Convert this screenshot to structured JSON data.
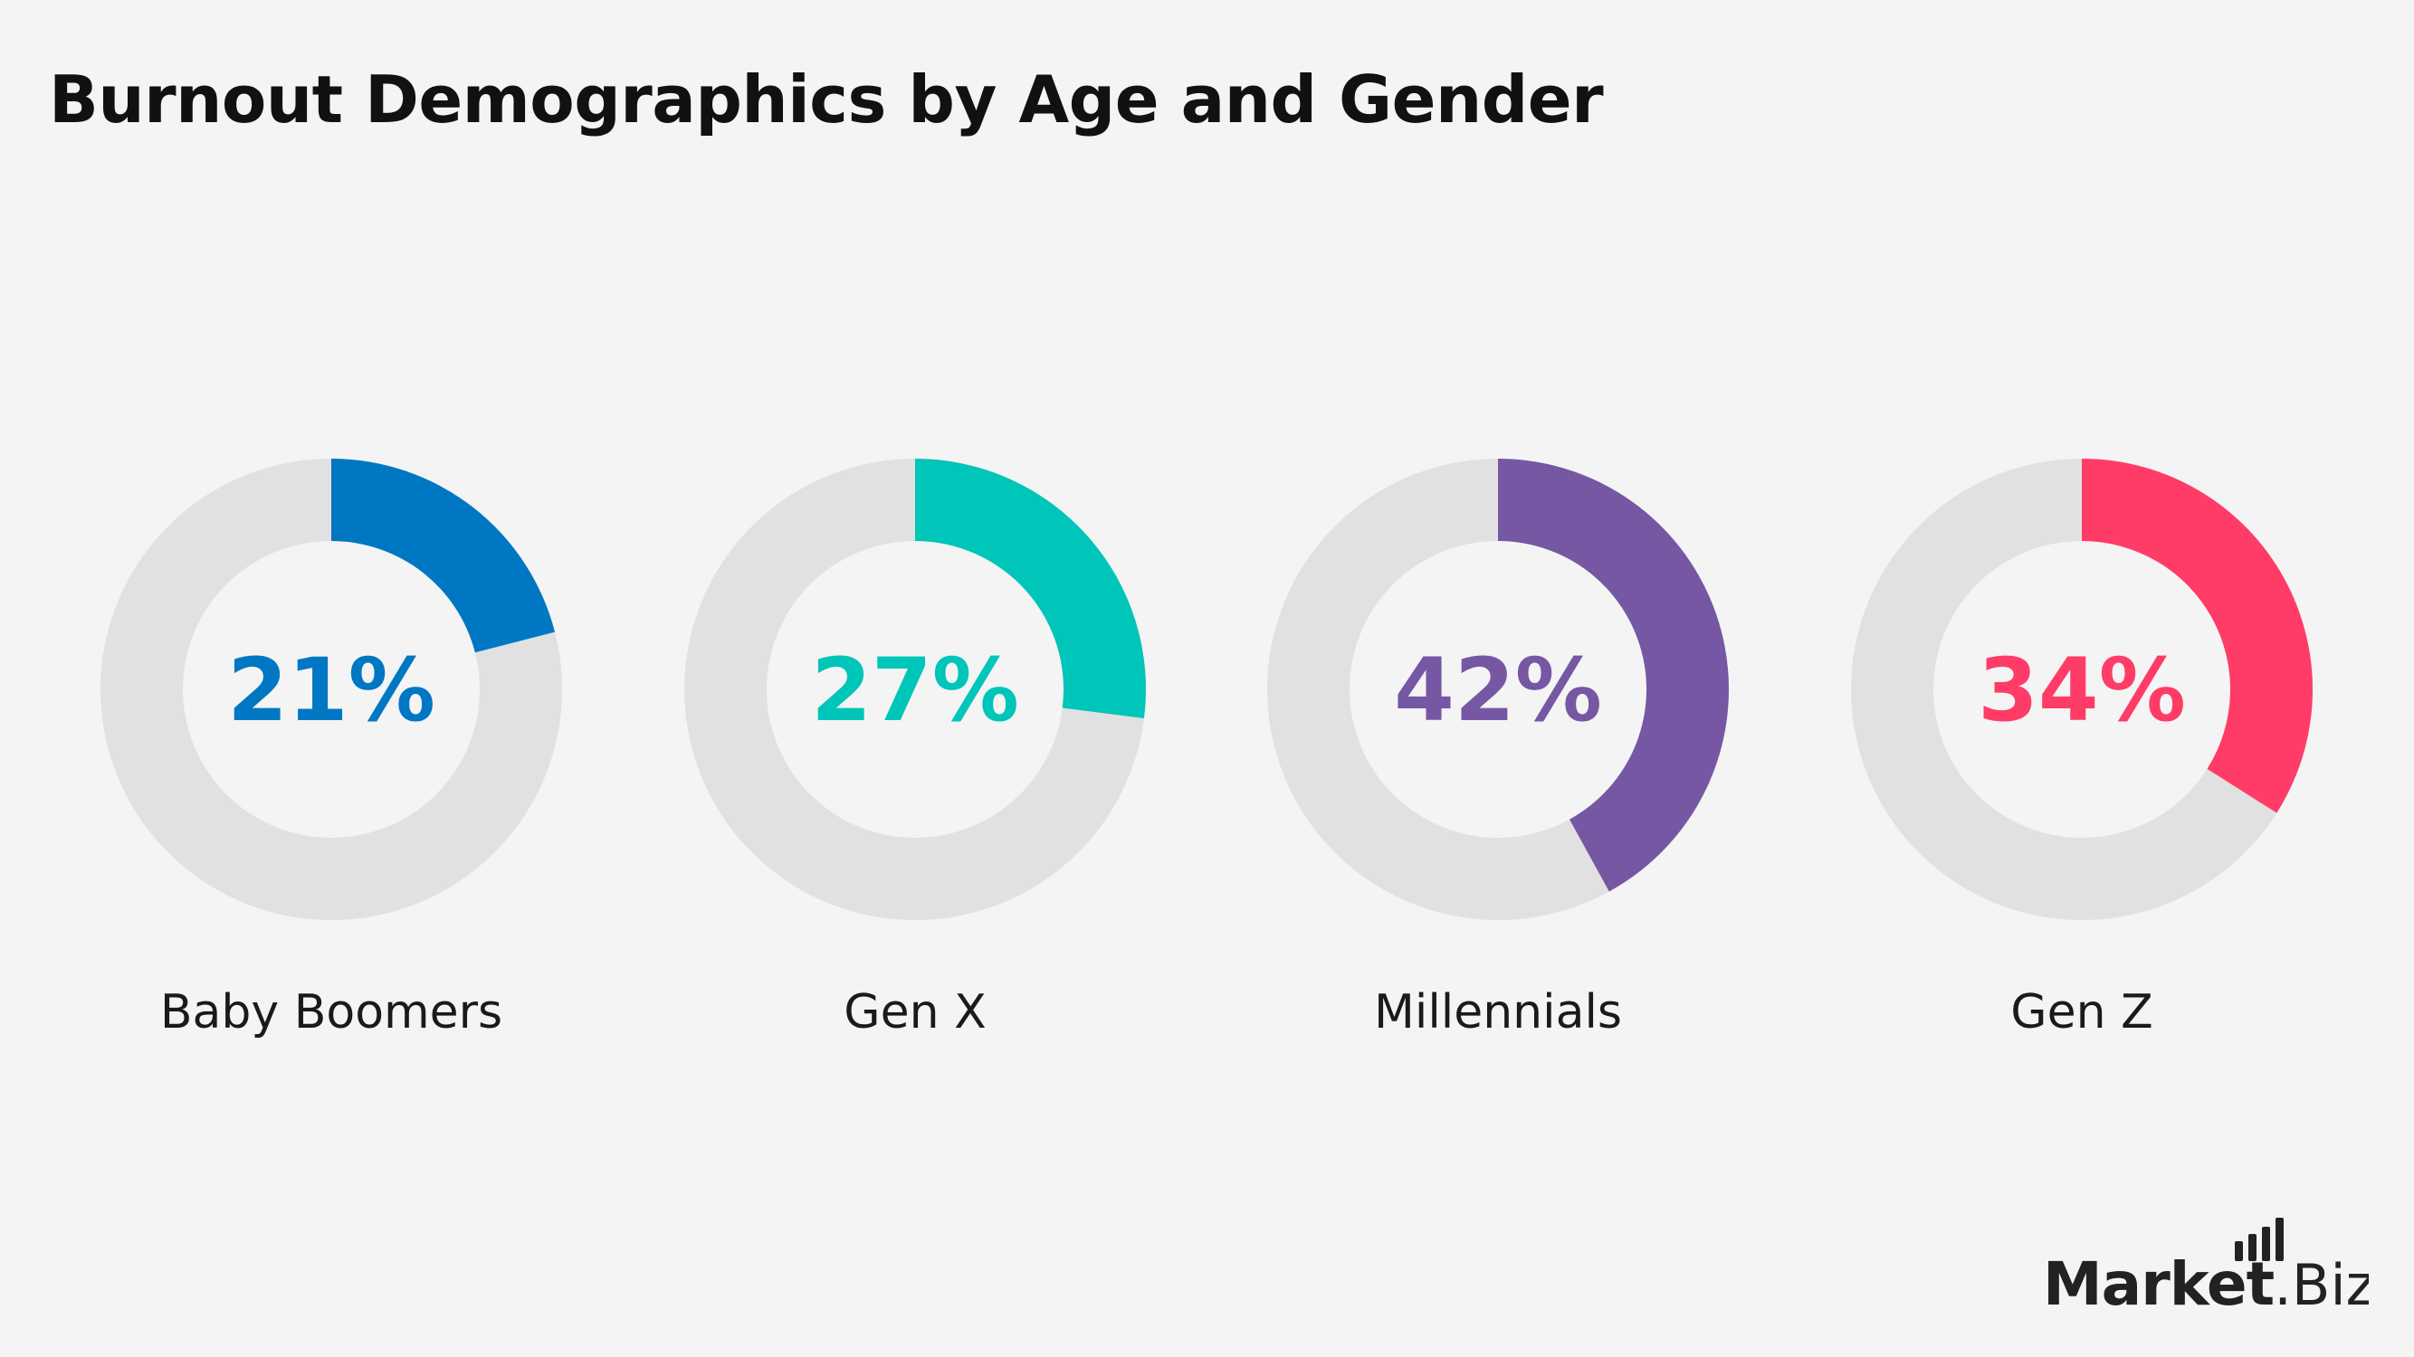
{
  "title": "Burnout Demographics by Age and Gender",
  "chart_data": {
    "type": "pie",
    "variant": "donut",
    "title": "Burnout Demographics by Age and Gender",
    "unit": "%",
    "track_color": "#e1e1e1",
    "series": [
      {
        "name": "Baby Boomers",
        "value": 21,
        "label": "21%",
        "color": "#0077c2"
      },
      {
        "name": "Gen X",
        "value": 27,
        "label": "27%",
        "color": "#00c5b9"
      },
      {
        "name": "Millennials",
        "value": 42,
        "label": "42%",
        "color": "#7657a4"
      },
      {
        "name": "Gen Z",
        "value": 34,
        "label": "34%",
        "color": "#ff3c68"
      }
    ]
  },
  "logo": {
    "brand": "Market",
    "suffix": ".Biz"
  }
}
